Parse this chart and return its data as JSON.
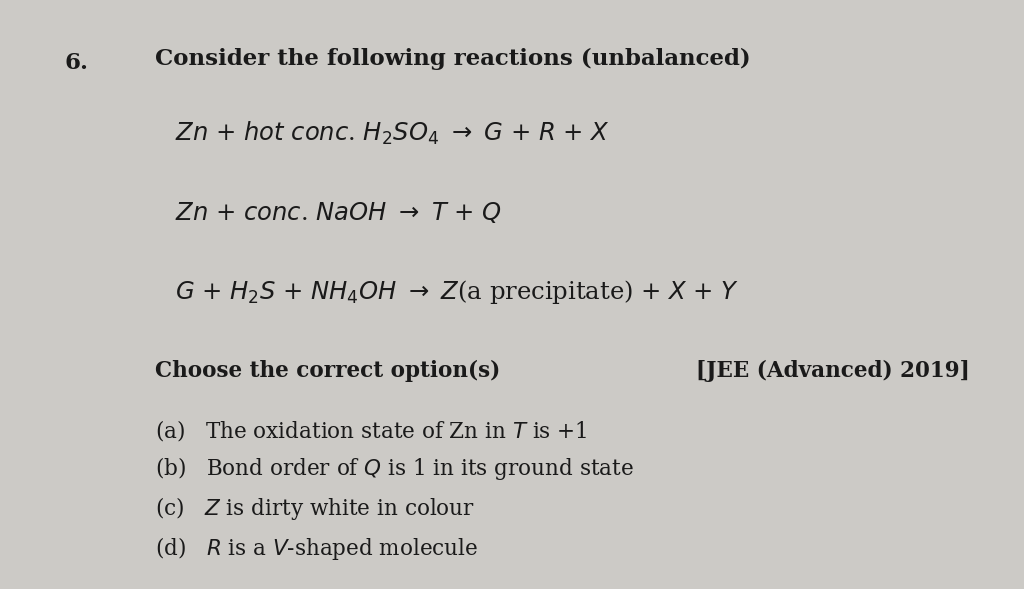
{
  "bg_color": "#cccac6",
  "text_color": "#1a1a1a",
  "title": "Consider the following reactions (unbalanced)",
  "question_number": "6.",
  "reaction1": "$Zn$ + $hot$ $conc$. $H_2SO_4$ $\\rightarrow$ $G$ + $R$ + $X$",
  "reaction2": "$Zn$ + $conc$. $NaOH$ $\\rightarrow$ $T$ + $Q$",
  "reaction3": "$G$ + $H_2S$ + $NH_4OH$ $\\rightarrow$ $Z$(a precipitate) + $X$ + $Y$",
  "choose_text": "Choose the correct option(s)",
  "source_text": "[JEE (Advanced) 2019]",
  "options": [
    "(a)   The oxidation state of Zn in $T$ is +1",
    "(b)   Bond order of $Q$ is 1 in its ground state",
    "(c)   $Z$ is dirty white in colour",
    "(d)   $R$ is a $V$-shaped molecule"
  ],
  "title_fontsize": 16.5,
  "reaction_fontsize": 17.5,
  "option_fontsize": 15.5,
  "choose_fontsize": 15.5,
  "source_fontsize": 15.5,
  "qnum_fontsize": 16.5
}
